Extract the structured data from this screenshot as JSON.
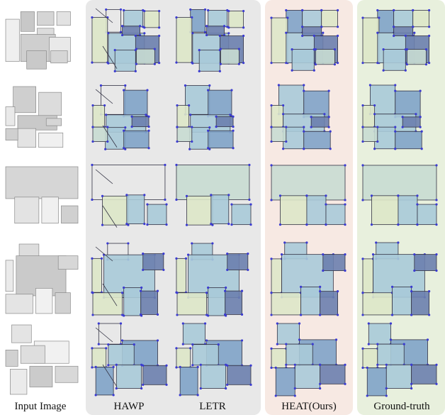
{
  "columns": [
    {
      "key": "input",
      "label": "Input Image"
    },
    {
      "key": "hawp",
      "label": "HAWP"
    },
    {
      "key": "letr",
      "label": "LETR"
    },
    {
      "key": "heat",
      "label": "HEAT(Ours)"
    },
    {
      "key": "gt",
      "label": "Ground-truth"
    }
  ],
  "rows": 5,
  "colors": {
    "blue_light": "#a9cad8",
    "blue_mid": "#7fa3c8",
    "blue_dark": "#6b7fae",
    "green_pale": "#dde7c8",
    "mint": "#c8dcd2",
    "edge": "#333344",
    "corner": "#3a3ad0",
    "panel_gray": "#e8e8e8",
    "panel_heat": "#f7e9e3",
    "panel_gt": "#e8f0dd"
  }
}
